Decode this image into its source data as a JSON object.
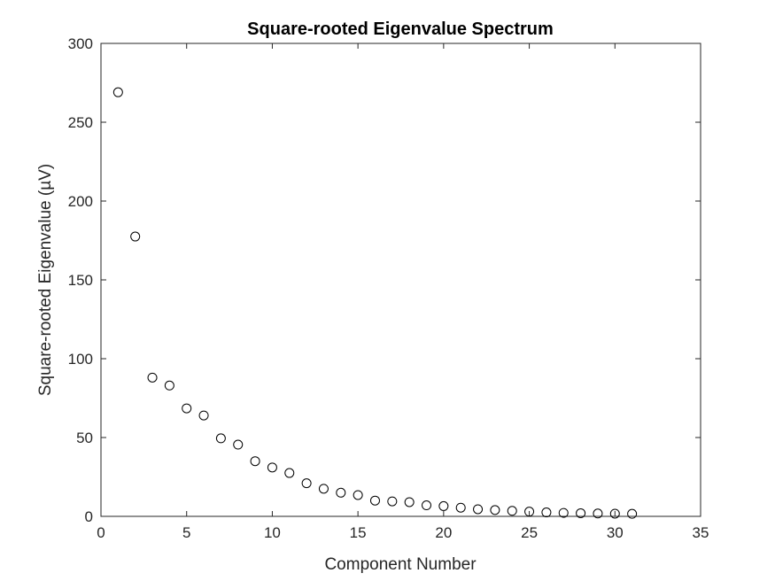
{
  "chart_data": {
    "type": "scatter",
    "title": "Square-rooted Eigenvalue Spectrum",
    "xlabel": "Component Number",
    "ylabel": "Square-rooted Eigenvalue (µV)",
    "xlim": [
      0,
      35
    ],
    "ylim": [
      0,
      300
    ],
    "xticks": [
      0,
      5,
      10,
      15,
      20,
      25,
      30,
      35
    ],
    "yticks": [
      0,
      50,
      100,
      150,
      200,
      250,
      300
    ],
    "grid": false,
    "marker": "open-circle",
    "marker_color": "#000000",
    "x": [
      1,
      2,
      3,
      4,
      5,
      6,
      7,
      8,
      9,
      10,
      11,
      12,
      13,
      14,
      15,
      16,
      17,
      18,
      19,
      20,
      21,
      22,
      23,
      24,
      25,
      26,
      27,
      28,
      29,
      30,
      31
    ],
    "y": [
      269,
      177.5,
      88,
      83,
      68.5,
      64,
      49.5,
      45.5,
      35,
      31,
      27.5,
      21,
      17.5,
      15,
      13.5,
      10,
      9.5,
      9,
      7,
      6.5,
      5.5,
      4.5,
      4,
      3.5,
      3,
      2.5,
      2.2,
      2,
      1.8,
      1.7,
      1.6
    ]
  }
}
